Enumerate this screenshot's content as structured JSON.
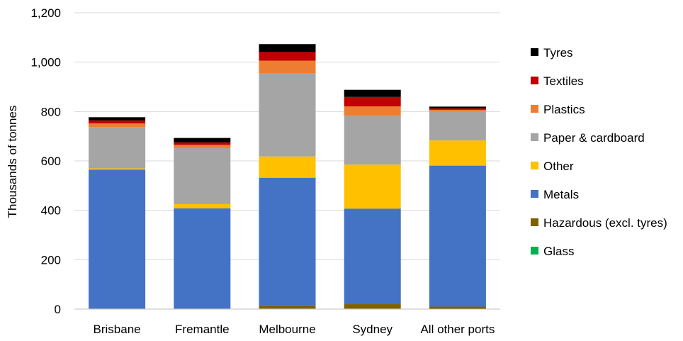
{
  "chart_data": {
    "type": "bar",
    "stacked": true,
    "title": "",
    "xlabel": "",
    "ylabel": "Thousands of tonnes",
    "ylim": [
      0,
      1200
    ],
    "yticks": [
      0,
      200,
      400,
      600,
      800,
      1000,
      1200
    ],
    "ytick_labels": [
      "0",
      "200",
      "400",
      "600",
      "800",
      "1,000",
      "1,200"
    ],
    "grid": true,
    "legend_position": "right",
    "categories": [
      "Brisbane",
      "Fremantle",
      "Melbourne",
      "Sydney",
      "All other ports"
    ],
    "series": [
      {
        "name": "Glass",
        "color": "#00B050",
        "values": [
          0,
          0,
          2,
          2,
          1
        ]
      },
      {
        "name": "Hazardous (excl. tyres)",
        "color": "#7F6000",
        "values": [
          2,
          2,
          13,
          18,
          9
        ]
      },
      {
        "name": "Metals",
        "color": "#4472C4",
        "values": [
          563,
          406,
          517,
          387,
          571
        ]
      },
      {
        "name": "Other",
        "color": "#FFC000",
        "values": [
          5,
          17,
          86,
          178,
          102
        ]
      },
      {
        "name": "Paper & cardboard",
        "color": "#A5A5A5",
        "values": [
          167,
          228,
          338,
          198,
          117
        ]
      },
      {
        "name": "Plastics",
        "color": "#ED7D31",
        "values": [
          15,
          12,
          50,
          38,
          7
        ]
      },
      {
        "name": "Textiles",
        "color": "#C00000",
        "values": [
          12,
          10,
          35,
          38,
          6
        ]
      },
      {
        "name": "Tyres",
        "color": "#000000",
        "values": [
          13,
          18,
          32,
          29,
          7
        ]
      }
    ],
    "legend_order": [
      "Tyres",
      "Textiles",
      "Plastics",
      "Paper & cardboard",
      "Other",
      "Metals",
      "Hazardous (excl. tyres)",
      "Glass"
    ]
  }
}
